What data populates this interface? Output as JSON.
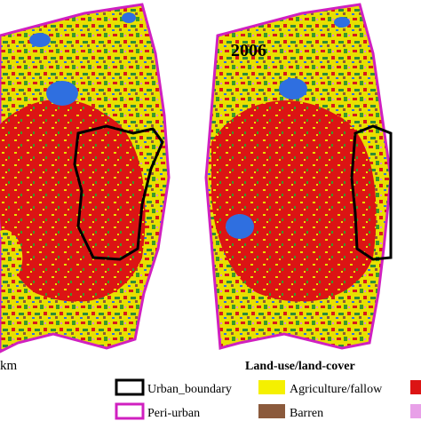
{
  "year_label": "2006",
  "scale_unit": "km",
  "legend": {
    "title": "Land-use/land-cover",
    "items": [
      {
        "label": "Urban_boundary"
      },
      {
        "label": "Agriculture/fallow"
      },
      {
        "label": "Peri-urban"
      },
      {
        "label": "Barren"
      }
    ]
  }
}
